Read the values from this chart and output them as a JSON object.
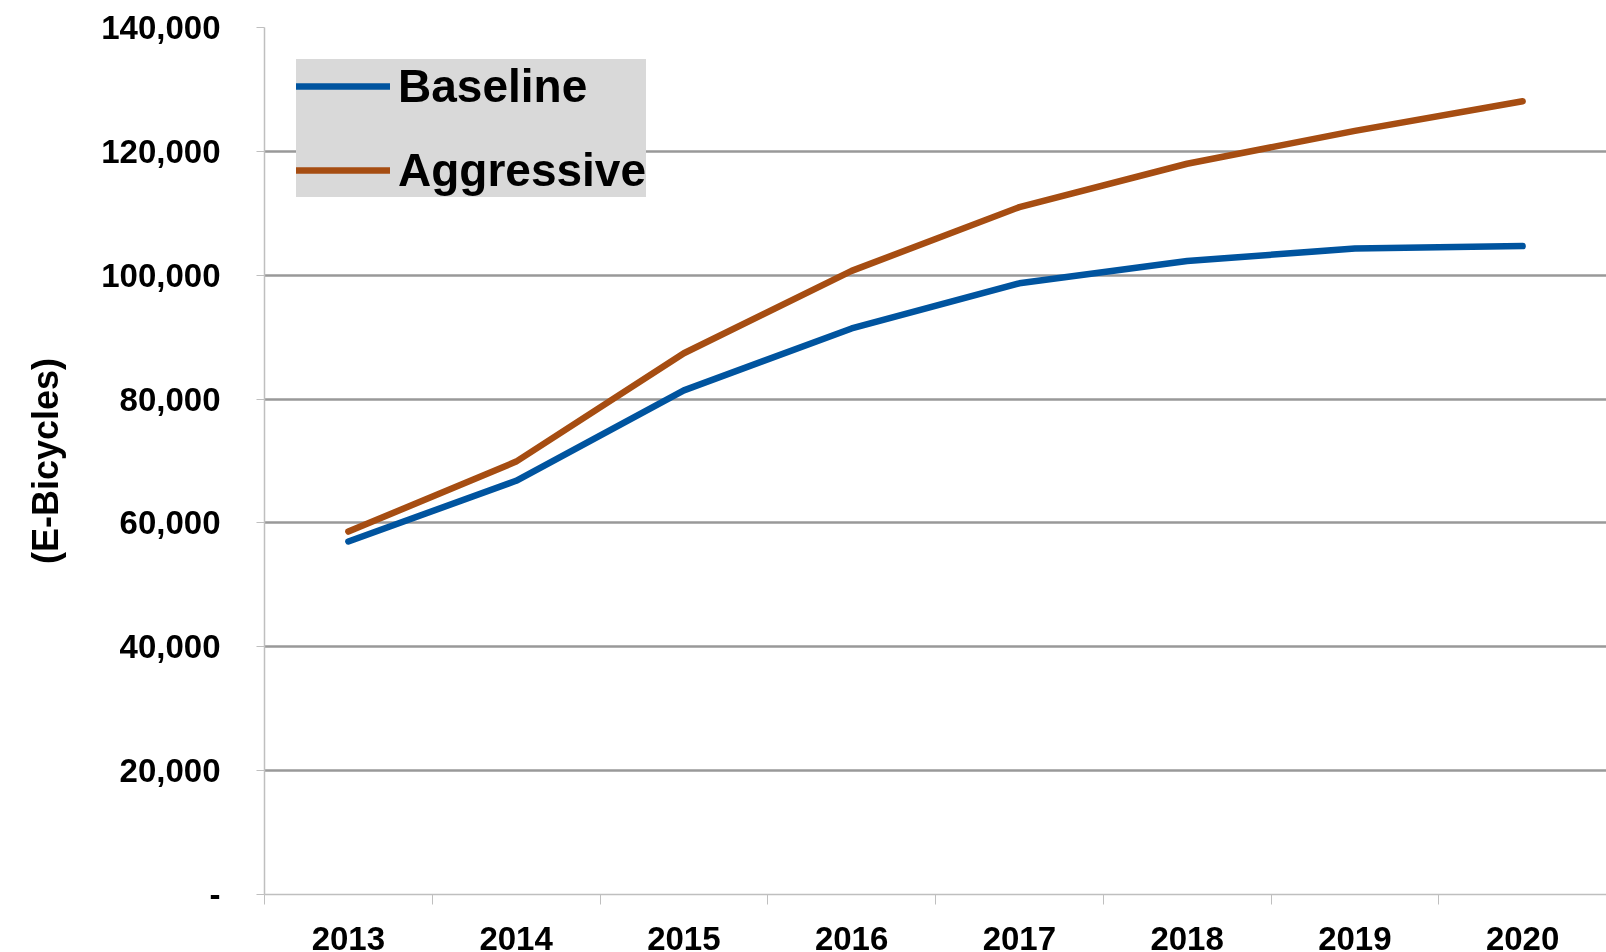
{
  "chart_data": {
    "type": "line",
    "ylabel": "(E-Bicycles)",
    "categories": [
      "2013",
      "2014",
      "2015",
      "2016",
      "2017",
      "2018",
      "2019",
      "2020"
    ],
    "series": [
      {
        "name": "Baseline",
        "color": "#00549f",
        "values": [
          57000,
          66800,
          81400,
          91400,
          98700,
          102300,
          104300,
          104700
        ]
      },
      {
        "name": "Aggressive",
        "color": "#a64d12",
        "values": [
          58600,
          69900,
          87400,
          100700,
          111000,
          118000,
          123300,
          128100
        ]
      }
    ],
    "ylim": [
      0,
      140000
    ],
    "yticks": [
      {
        "value": 0,
        "label": "-"
      },
      {
        "value": 20000,
        "label": "20,000"
      },
      {
        "value": 40000,
        "label": "40,000"
      },
      {
        "value": 60000,
        "label": "60,000"
      },
      {
        "value": 80000,
        "label": "80,000"
      },
      {
        "value": 100000,
        "label": "100,000"
      },
      {
        "value": 120000,
        "label": "120,000"
      },
      {
        "value": 140000,
        "label": "140,000"
      }
    ],
    "grid": "y",
    "legend": "top left",
    "line_style": "solid"
  }
}
